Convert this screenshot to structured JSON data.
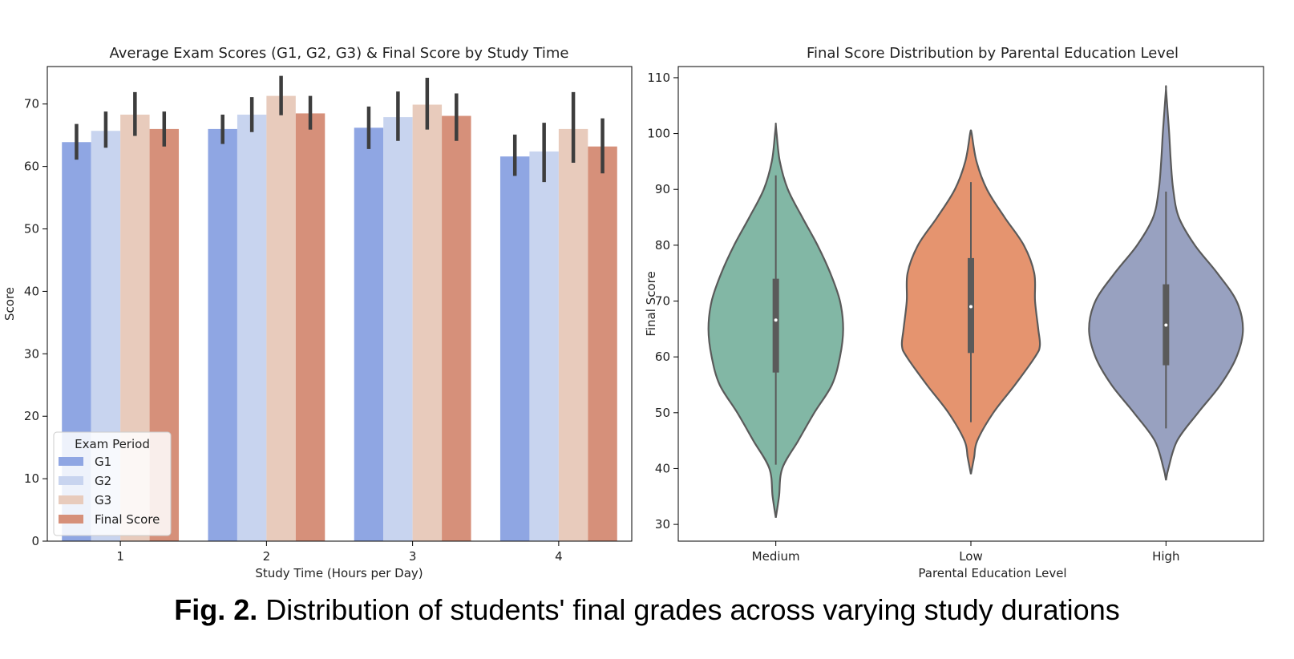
{
  "chart_data": [
    {
      "type": "bar",
      "title": "Average Exam Scores (G1, G2, G3) & Final Score by Study Time",
      "xlabel": "Study Time (Hours per Day)",
      "ylabel": "Score",
      "categories": [
        "1",
        "2",
        "3",
        "4"
      ],
      "ylim": [
        0,
        76
      ],
      "yticks": [
        0,
        10,
        20,
        30,
        40,
        50,
        60,
        70
      ],
      "legend": {
        "title": "Exam Period",
        "placement": "lower-left"
      },
      "series": [
        {
          "name": "G1",
          "color": "#8fa6e3",
          "values": [
            63.9,
            66.0,
            66.2,
            61.6
          ],
          "err_low": [
            61.1,
            63.6,
            62.8,
            58.5
          ],
          "err_high": [
            66.8,
            68.3,
            69.6,
            65.1
          ]
        },
        {
          "name": "G2",
          "color": "#c8d4ef",
          "values": [
            65.7,
            68.3,
            67.9,
            62.4
          ],
          "err_low": [
            63.0,
            65.5,
            64.1,
            57.5
          ],
          "err_high": [
            68.8,
            71.1,
            72.0,
            67.0
          ]
        },
        {
          "name": "G3",
          "color": "#e8cbbc",
          "values": [
            68.3,
            71.3,
            69.9,
            66.0
          ],
          "err_low": [
            64.9,
            68.2,
            65.9,
            60.6
          ],
          "err_high": [
            71.9,
            74.5,
            74.2,
            71.9
          ]
        },
        {
          "name": "Final Score",
          "color": "#d6907a",
          "values": [
            66.0,
            68.5,
            68.1,
            63.2
          ],
          "err_low": [
            63.2,
            65.9,
            64.1,
            58.9
          ],
          "err_high": [
            68.8,
            71.3,
            71.7,
            67.7
          ]
        }
      ],
      "grid": false
    },
    {
      "type": "violin",
      "title": "Final Score Distribution by Parental Education Level",
      "xlabel": "Parental Education Level",
      "ylabel": "Final Score",
      "categories": [
        "Medium",
        "Low",
        "High"
      ],
      "ylim": [
        27,
        112
      ],
      "yticks": [
        30,
        40,
        50,
        60,
        70,
        80,
        90,
        100,
        110
      ],
      "grid": false,
      "violins": [
        {
          "category": "Medium",
          "color": "#82b7a5",
          "min": 31.2,
          "max": 101.6,
          "whisker_low": 40.7,
          "whisker_high": 92.5,
          "q1": 57.2,
          "median": 66.6,
          "q3": 74.0,
          "profile": [
            [
              31.2,
              0
            ],
            [
              35,
              4
            ],
            [
              40,
              8
            ],
            [
              45,
              28
            ],
            [
              50,
              48
            ],
            [
              55,
              70
            ],
            [
              60,
              80
            ],
            [
              65,
              84
            ],
            [
              70,
              80
            ],
            [
              75,
              68
            ],
            [
              80,
              52
            ],
            [
              85,
              33
            ],
            [
              90,
              15
            ],
            [
              95,
              5
            ],
            [
              100,
              1
            ],
            [
              101.6,
              0
            ]
          ]
        },
        {
          "category": "Low",
          "color": "#e5946f",
          "min": 39.0,
          "max": 100.5,
          "whisker_low": 48.3,
          "whisker_high": 91.3,
          "q1": 60.7,
          "median": 69.0,
          "q3": 77.7,
          "profile": [
            [
              39,
              0
            ],
            [
              42,
              4
            ],
            [
              45,
              8
            ],
            [
              50,
              28
            ],
            [
              55,
              55
            ],
            [
              60,
              80
            ],
            [
              62,
              86
            ],
            [
              65,
              84
            ],
            [
              70,
              80
            ],
            [
              75,
              79
            ],
            [
              80,
              66
            ],
            [
              85,
              42
            ],
            [
              90,
              20
            ],
            [
              95,
              7
            ],
            [
              100,
              1
            ],
            [
              100.5,
              0
            ]
          ]
        },
        {
          "category": "High",
          "color": "#98a1c0",
          "min": 37.9,
          "max": 108.0,
          "whisker_low": 47.2,
          "whisker_high": 89.6,
          "q1": 58.5,
          "median": 65.7,
          "q3": 73.0,
          "profile": [
            [
              37.9,
              0
            ],
            [
              40,
              3
            ],
            [
              45,
              14
            ],
            [
              50,
              40
            ],
            [
              55,
              68
            ],
            [
              60,
              88
            ],
            [
              65,
              96
            ],
            [
              70,
              88
            ],
            [
              75,
              64
            ],
            [
              80,
              36
            ],
            [
              85,
              16
            ],
            [
              90,
              9
            ],
            [
              95,
              6
            ],
            [
              100,
              4
            ],
            [
              104,
              2
            ],
            [
              108,
              0
            ]
          ]
        }
      ]
    }
  ],
  "caption": {
    "label": "Fig. 2.",
    "text": " Distribution of students' final grades across varying study durations"
  }
}
